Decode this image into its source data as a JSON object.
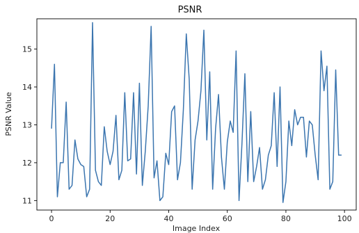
{
  "chart_data": {
    "type": "line",
    "title": "PSNR",
    "xlabel": "Image Index",
    "ylabel": "PSNR Value",
    "xlim": [
      -5,
      104
    ],
    "ylim": [
      10.75,
      15.8
    ],
    "xticks": [
      0,
      20,
      40,
      60,
      80,
      100
    ],
    "yticks": [
      11,
      12,
      13,
      14,
      15
    ],
    "grid": false,
    "series": [
      {
        "color": "#3b75af",
        "x": [
          0,
          1,
          2,
          3,
          4,
          5,
          6,
          7,
          8,
          9,
          10,
          11,
          12,
          13,
          14,
          15,
          16,
          17,
          18,
          19,
          20,
          21,
          22,
          23,
          24,
          25,
          26,
          27,
          28,
          29,
          30,
          31,
          32,
          33,
          34,
          35,
          36,
          37,
          38,
          39,
          40,
          41,
          42,
          43,
          44,
          45,
          46,
          47,
          48,
          49,
          50,
          51,
          52,
          53,
          54,
          55,
          56,
          57,
          58,
          59,
          60,
          61,
          62,
          63,
          64,
          65,
          66,
          67,
          68,
          69,
          70,
          71,
          72,
          73,
          74,
          75,
          76,
          77,
          78,
          79,
          80,
          81,
          82,
          83,
          84,
          85,
          86,
          87,
          88,
          89,
          90,
          91,
          92,
          93,
          94,
          95,
          96,
          97,
          98,
          99
        ],
        "values": [
          12.9,
          14.6,
          11.1,
          12.0,
          12.0,
          13.6,
          11.3,
          11.4,
          12.6,
          12.1,
          11.95,
          11.9,
          11.1,
          11.3,
          15.7,
          11.8,
          11.5,
          11.4,
          12.95,
          12.3,
          11.95,
          12.3,
          13.25,
          11.55,
          11.8,
          13.85,
          12.05,
          12.1,
          13.85,
          11.7,
          14.1,
          11.4,
          12.3,
          13.5,
          15.6,
          11.6,
          12.05,
          11.0,
          11.1,
          12.25,
          11.95,
          13.35,
          13.5,
          11.55,
          12.0,
          13.4,
          15.4,
          14.2,
          11.3,
          12.6,
          13.1,
          13.9,
          15.5,
          12.6,
          14.4,
          11.3,
          12.9,
          13.8,
          12.15,
          11.3,
          12.55,
          13.1,
          12.8,
          14.95,
          11.0,
          12.5,
          14.35,
          11.5,
          13.35,
          11.5,
          11.9,
          12.4,
          11.3,
          11.55,
          12.2,
          12.45,
          13.85,
          11.9,
          14.0,
          10.95,
          11.5,
          13.1,
          12.45,
          13.4,
          13.0,
          13.2,
          13.2,
          12.15,
          13.1,
          13.0,
          12.2,
          11.55,
          14.95,
          13.9,
          14.55,
          11.3,
          11.5,
          14.45,
          12.2,
          12.2
        ]
      }
    ]
  }
}
